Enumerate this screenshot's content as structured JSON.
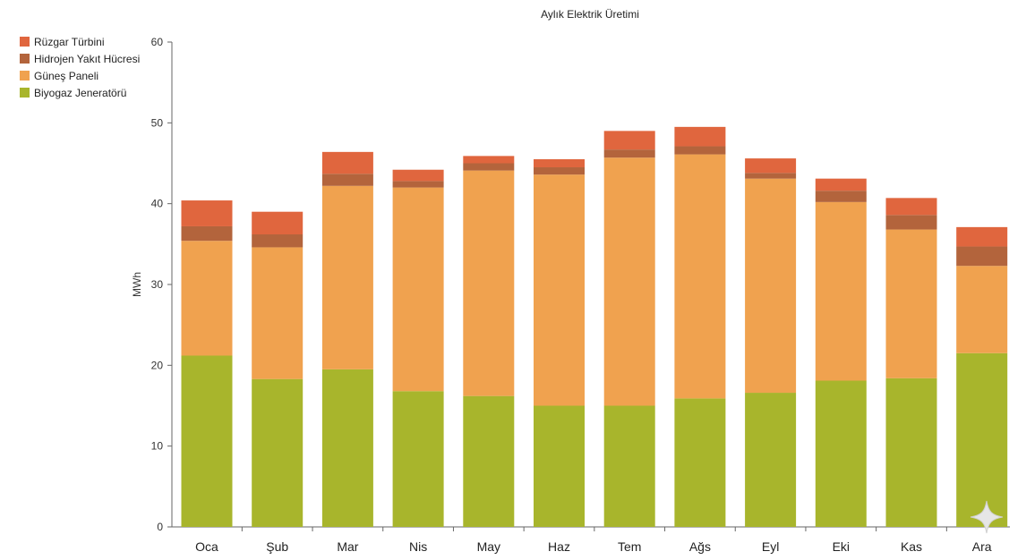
{
  "chart_data": {
    "type": "bar",
    "stacked": true,
    "title": "Aylık Elektrik Üretimi",
    "xlabel": "",
    "ylabel": "MWh",
    "ylim": [
      0,
      60
    ],
    "yticks": [
      0,
      10,
      20,
      30,
      40,
      50,
      60
    ],
    "categories": [
      "Oca",
      "Şub",
      "Mar",
      "Nis",
      "May",
      "Haz",
      "Tem",
      "Ağs",
      "Eyl",
      "Eki",
      "Kas",
      "Ara"
    ],
    "series": [
      {
        "name": "Biyogaz Jeneratörü",
        "color": "#a8b52c",
        "values": [
          21.2,
          18.3,
          19.5,
          16.8,
          16.2,
          15.0,
          15.0,
          15.9,
          16.6,
          18.1,
          18.4,
          21.5
        ]
      },
      {
        "name": "Güneş Paneli",
        "color": "#f0a24f",
        "values": [
          14.2,
          16.3,
          22.7,
          25.2,
          27.9,
          28.6,
          30.7,
          30.2,
          26.5,
          22.1,
          18.4,
          10.8
        ]
      },
      {
        "name": "Hidrojen Yakıt Hücresi",
        "color": "#b3643c",
        "values": [
          1.8,
          1.6,
          1.5,
          0.8,
          0.9,
          0.9,
          1.0,
          1.0,
          0.7,
          1.4,
          1.8,
          2.4
        ]
      },
      {
        "name": "Rüzgar Türbini",
        "color": "#e0663e",
        "values": [
          3.2,
          2.8,
          2.7,
          1.4,
          0.9,
          1.0,
          2.3,
          2.4,
          1.8,
          1.5,
          2.1,
          2.4
        ]
      }
    ],
    "legend_order": [
      "Rüzgar Türbini",
      "Hidrojen Yakıt Hücresi",
      "Güneş Paneli",
      "Biyogaz Jeneratörü"
    ],
    "legend_position": "top-left",
    "grid": false
  }
}
